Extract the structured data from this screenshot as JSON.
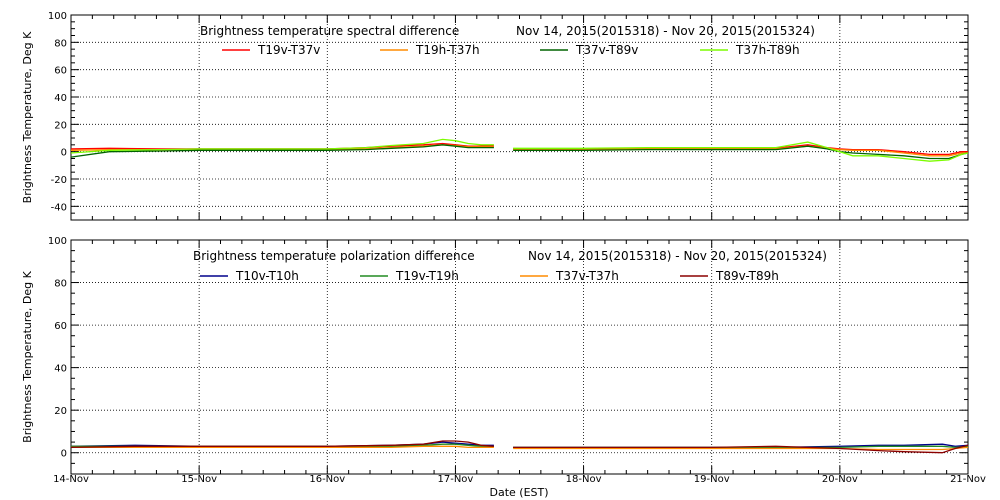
{
  "x_axis": {
    "title": "Date (EST)",
    "tick_labels": [
      "14-Nov",
      "15-Nov",
      "16-Nov",
      "17-Nov",
      "18-Nov",
      "19-Nov",
      "20-Nov",
      "21-Nov"
    ]
  },
  "chart_data": [
    {
      "type": "line",
      "title": "Brightness temperature spectral difference",
      "subtitle": "Nov 14, 2015(2015318) - Nov 20, 2015(2015324)",
      "ylabel": "Brightness Temperature, Deg K",
      "ylim": [
        -50,
        100
      ],
      "yticks": [
        -40,
        -20,
        0,
        20,
        40,
        60,
        80,
        100
      ],
      "ytick_labels": [
        "-40",
        "-20",
        "0",
        "20",
        "40",
        "60",
        "80",
        "100"
      ],
      "xlim_days": [
        0,
        7
      ],
      "grid": true,
      "legend_position": "top",
      "series": [
        {
          "name": "T19v-T37v",
          "color": "#ff0000",
          "x": [
            0,
            0.3,
            0.7,
            1,
            1.5,
            2,
            2.3,
            2.5,
            2.75,
            2.9,
            3,
            3.1,
            3.2,
            3.3,
            3.3,
            3.4,
            3.43,
            3.45,
            3.9,
            4,
            4.5,
            5,
            5.5,
            5.75,
            5.9,
            6,
            6.1,
            6.3,
            6.5,
            6.7,
            6.85,
            6.95,
            7
          ],
          "y": [
            2,
            2.5,
            2,
            2,
            2,
            2,
            3,
            4,
            5,
            6,
            5,
            4,
            4,
            4,
            null,
            null,
            null,
            2,
            2,
            2,
            2.5,
            2.5,
            2.5,
            5,
            3,
            2,
            1.5,
            1.5,
            0,
            -2,
            -2,
            0,
            0
          ]
        },
        {
          "name": "T19h-T37h",
          "color": "#ff8c00",
          "x": [
            0,
            0.3,
            0.7,
            1,
            1.5,
            2,
            2.3,
            2.5,
            2.75,
            2.9,
            3,
            3.1,
            3.2,
            3.3,
            3.3,
            3.4,
            3.43,
            3.45,
            3.9,
            4,
            4.5,
            5,
            5.5,
            5.75,
            5.9,
            6,
            6.1,
            6.3,
            6.5,
            6.7,
            6.85,
            6.95,
            7
          ],
          "y": [
            1,
            1.5,
            1.5,
            1.5,
            1.5,
            1.5,
            2,
            3,
            4,
            5,
            4.5,
            3.5,
            3.5,
            3.5,
            null,
            null,
            null,
            1.5,
            1.5,
            1.5,
            2,
            2,
            2,
            4,
            2.5,
            1.5,
            1,
            1,
            -1,
            -3,
            -3,
            -1,
            -1
          ]
        },
        {
          "name": "T37v-T89v",
          "color": "#006400",
          "x": [
            0,
            0.3,
            0.7,
            1,
            1.5,
            2,
            2.3,
            2.5,
            2.75,
            2.9,
            3,
            3.1,
            3.2,
            3.3,
            3.3,
            3.4,
            3.43,
            3.45,
            3.9,
            4,
            4.5,
            5,
            5.5,
            5.75,
            5.9,
            6,
            6.1,
            6.3,
            6.5,
            6.7,
            6.85,
            6.95,
            7
          ],
          "y": [
            -4,
            0,
            0.5,
            1,
            1,
            1,
            1.5,
            2.5,
            3.5,
            5,
            4,
            3,
            3,
            3,
            null,
            null,
            null,
            1,
            1,
            1,
            1.5,
            1.5,
            1.5,
            4,
            2,
            0,
            -1,
            -2,
            -3,
            -5,
            -5,
            -2,
            -1
          ]
        },
        {
          "name": "T37h-T89h",
          "color": "#7cfc00",
          "x": [
            0,
            0.3,
            0.7,
            1,
            1.5,
            2,
            2.3,
            2.5,
            2.75,
            2.9,
            3,
            3.1,
            3.2,
            3.3,
            3.3,
            3.4,
            3.43,
            3.45,
            3.9,
            4,
            4.5,
            5,
            5.5,
            5.75,
            5.9,
            6,
            6.1,
            6.3,
            6.5,
            6.7,
            6.85,
            6.95,
            7
          ],
          "y": [
            -1,
            1,
            1.5,
            2,
            2,
            2,
            3,
            4.5,
            6,
            9,
            8,
            6,
            5,
            5,
            null,
            null,
            null,
            2.5,
            2.5,
            2.5,
            3,
            3,
            3,
            7,
            3,
            0,
            -3,
            -3,
            -5,
            -7,
            -6,
            -2,
            -1
          ]
        }
      ]
    },
    {
      "type": "line",
      "title": "Brightness temperature polarization difference",
      "subtitle": "Nov 14, 2015(2015318) - Nov 20, 2015(2015324)",
      "ylabel": "Brightness Temperature, Deg K",
      "ylim": [
        -10,
        100
      ],
      "yticks": [
        0,
        20,
        40,
        60,
        80,
        100
      ],
      "ytick_labels": [
        "0",
        "20",
        "40",
        "60",
        "80",
        "100"
      ],
      "xlim_days": [
        0,
        7
      ],
      "grid": true,
      "legend_position": "top",
      "series": [
        {
          "name": "T10v-T10h",
          "color": "#00008b",
          "x": [
            0,
            0.5,
            1,
            1.5,
            2,
            2.5,
            2.75,
            2.9,
            3,
            3.1,
            3.2,
            3.3,
            3.3,
            3.45,
            3.45,
            4,
            4.5,
            5,
            5.5,
            6,
            6.3,
            6.5,
            6.8,
            6.9,
            7
          ],
          "y": [
            3,
            3.5,
            3,
            3,
            3,
            3.5,
            4,
            5,
            4.5,
            4,
            3.5,
            3.5,
            null,
            null,
            2.5,
            2.5,
            2.5,
            2.5,
            2.5,
            3,
            3.5,
            3.5,
            4,
            3,
            3.5
          ]
        },
        {
          "name": "T19v-T19h",
          "color": "#228b22",
          "x": [
            0,
            0.5,
            1,
            1.5,
            2,
            2.5,
            2.75,
            2.9,
            3,
            3.1,
            3.2,
            3.3,
            3.3,
            3.45,
            3.45,
            4,
            4.5,
            5,
            5.5,
            6,
            6.3,
            6.5,
            6.8,
            6.9,
            7
          ],
          "y": [
            3,
            3,
            3,
            3,
            3,
            3,
            3.5,
            4,
            4,
            3.5,
            3,
            3,
            null,
            null,
            2.5,
            2.5,
            2.5,
            2.5,
            2.5,
            2.5,
            3,
            3,
            3,
            2.5,
            3
          ]
        },
        {
          "name": "T37v-T37h",
          "color": "#ff8c00",
          "x": [
            0,
            0.5,
            1,
            1.5,
            2,
            2.5,
            2.75,
            2.9,
            3,
            3.1,
            3.2,
            3.3,
            3.3,
            3.45,
            3.45,
            4,
            4.5,
            5,
            5.5,
            6,
            6.3,
            6.5,
            6.8,
            6.9,
            7
          ],
          "y": [
            2.5,
            2.5,
            2.5,
            2.5,
            2.5,
            2.5,
            3,
            3,
            3,
            2.5,
            2.5,
            2.5,
            null,
            null,
            2,
            2,
            2,
            2,
            2,
            2,
            1.5,
            1.5,
            1.5,
            2,
            2.5
          ]
        },
        {
          "name": "T89v-T89h",
          "color": "#8b0000",
          "x": [
            0,
            0.5,
            1,
            1.5,
            2,
            2.5,
            2.75,
            2.9,
            3,
            3.1,
            3.2,
            3.3,
            3.3,
            3.45,
            3.45,
            4,
            4.5,
            5,
            5.5,
            6,
            6.3,
            6.5,
            6.8,
            6.9,
            7
          ],
          "y": [
            2.5,
            3,
            3,
            3,
            3,
            3.5,
            4,
            5.5,
            5.5,
            5,
            3.5,
            3,
            null,
            null,
            2.5,
            2.5,
            2.5,
            2.5,
            3,
            2,
            1,
            0.5,
            0,
            2,
            3.5
          ]
        }
      ]
    }
  ]
}
